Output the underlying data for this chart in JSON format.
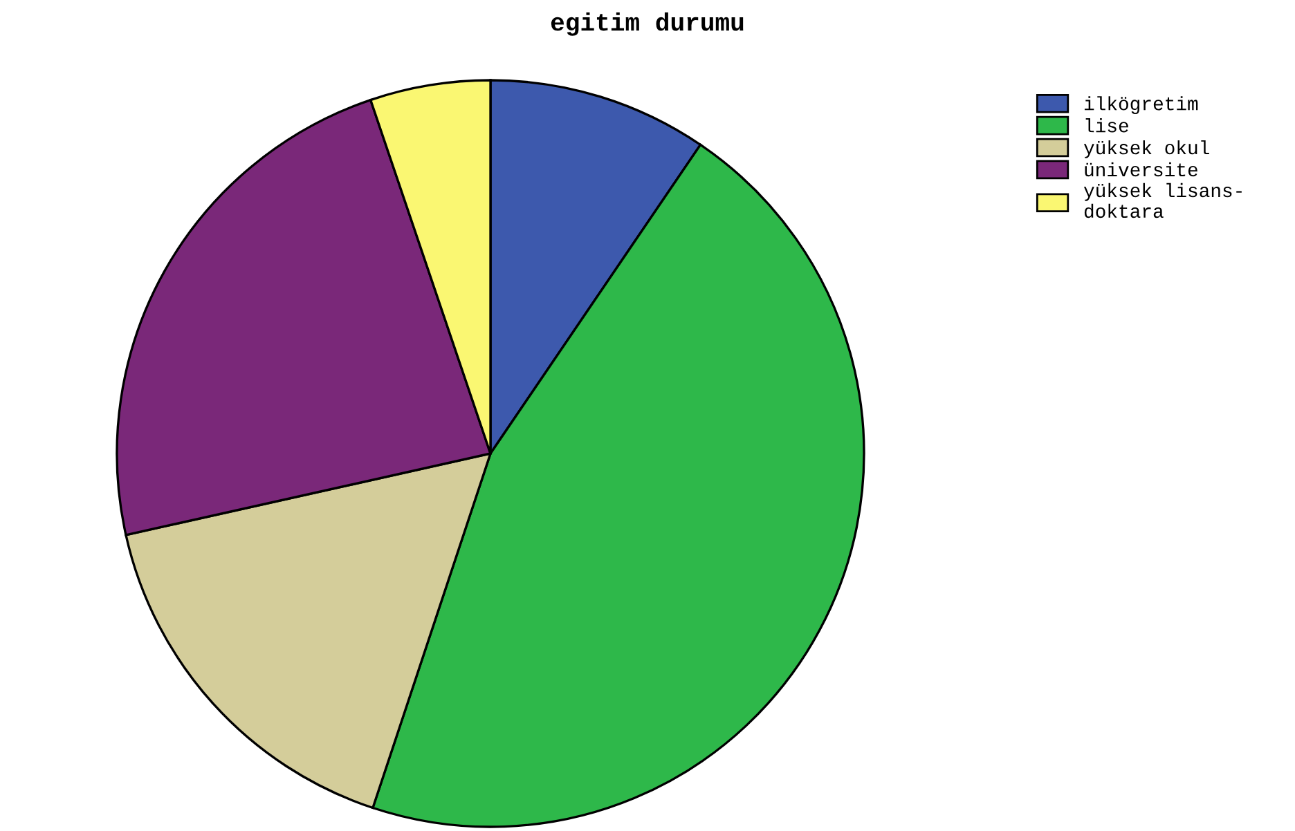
{
  "chart_data": {
    "type": "pie",
    "title": "egitim durumu",
    "categories": [
      "ilkögretim",
      "lise",
      "yüksek okul",
      "üniversite",
      "yüksek lisans-\ndoktara"
    ],
    "values": [
      9.5,
      45.6,
      16.4,
      23.3,
      5.2
    ],
    "colors": [
      "#3d59ad",
      "#2eb84a",
      "#d4cd9a",
      "#7a2879",
      "#faf772"
    ],
    "legend": "top right"
  }
}
